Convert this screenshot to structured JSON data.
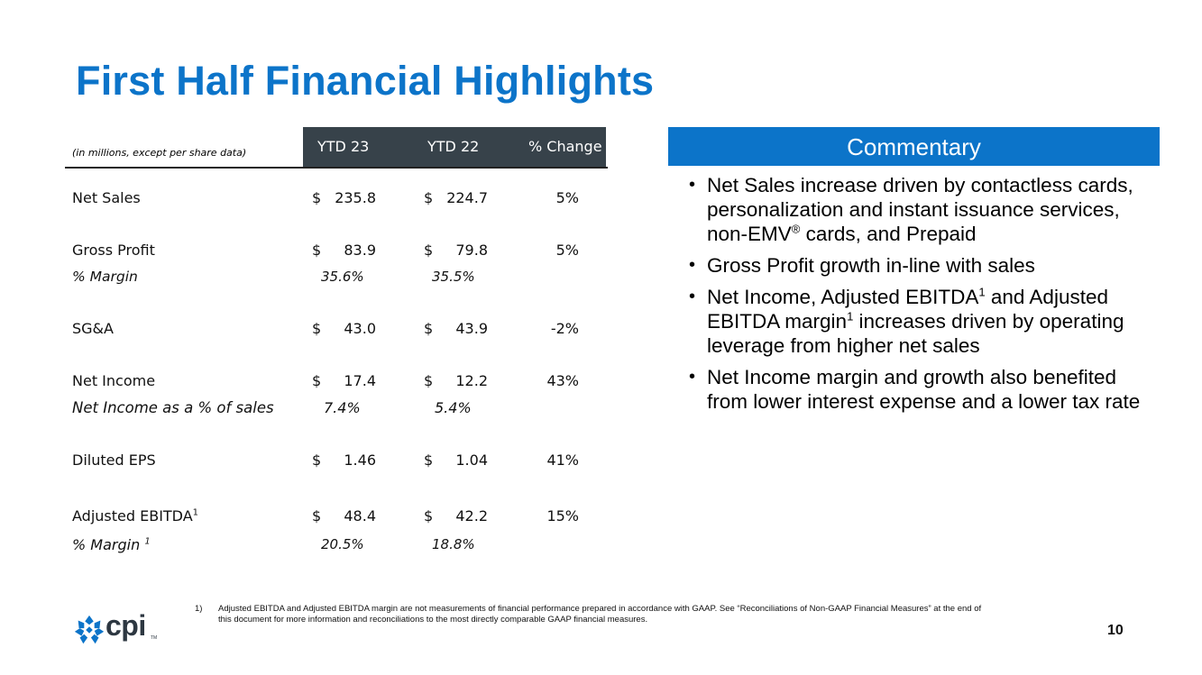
{
  "title": "First Half Financial Highlights",
  "table": {
    "units_note": "(in millions, except per share data)",
    "columns": [
      "YTD 23",
      "YTD 22",
      "% Change"
    ],
    "rows": {
      "net_sales": {
        "label": "Net Sales",
        "cur1": "$",
        "ytd23": "235.8",
        "cur2": "$",
        "ytd22": "224.7",
        "change": "5%"
      },
      "gross_profit": {
        "label": "Gross Profit",
        "cur1": "$",
        "ytd23": "83.9",
        "cur2": "$",
        "ytd22": "79.8",
        "change": "5%"
      },
      "gross_margin": {
        "label": "% Margin",
        "ytd23": "35.6%",
        "ytd22": "35.5%"
      },
      "sga": {
        "label": "SG&A",
        "cur1": "$",
        "ytd23": "43.0",
        "cur2": "$",
        "ytd22": "43.9",
        "change": "-2%"
      },
      "net_income": {
        "label": "Net Income",
        "cur1": "$",
        "ytd23": "17.4",
        "cur2": "$",
        "ytd22": "12.2",
        "change": "43%"
      },
      "net_income_pct": {
        "label": "Net Income as a % of sales",
        "ytd23": "7.4%",
        "ytd22": "5.4%"
      },
      "diluted_eps": {
        "label": "Diluted EPS",
        "cur1": "$",
        "ytd23": "1.46",
        "cur2": "$",
        "ytd22": "1.04",
        "change": "41%"
      },
      "adj_ebitda": {
        "label": "Adjusted EBITDA",
        "sup": "1",
        "cur1": "$",
        "ytd23": "48.4",
        "cur2": "$",
        "ytd22": "42.2",
        "change": "15%"
      },
      "adj_ebitda_margin": {
        "label": "% Margin",
        "sup": "1",
        "ytd23": "20.5%",
        "ytd22": "18.8%"
      }
    }
  },
  "commentary": {
    "heading": "Commentary",
    "bullet_glyph": "•",
    "items": {
      "b1": {
        "text": "Net Sales increase driven by contactless cards, personalization and instant issuance services, non-EMV",
        "reg": "®",
        "text_after": " cards, and Prepaid"
      },
      "b2": {
        "text": "Gross Profit growth in-line with sales"
      },
      "b3": {
        "part1": "Net Income, Adjusted EBITDA",
        "sup1": "1",
        "part2": " and Adjusted EBITDA margin",
        "sup2": "1",
        "part3": " increases driven by operating leverage from higher net sales"
      },
      "b4": {
        "text": "Net Income margin and growth also benefited from lower interest expense and a lower tax rate"
      }
    }
  },
  "footnote": {
    "number": "1)",
    "text": "Adjusted EBITDA and Adjusted EBITDA margin are not measurements of financial performance prepared in accordance with GAAP. See “Reconciliations of Non-GAAP Financial Measures” at the end of this document for more information and reconciliations to the most directly comparable GAAP financial measures."
  },
  "page_number": "10",
  "logo": {
    "text": "cpi",
    "tm": "TM",
    "icon": "cpi-flower-icon",
    "color_primary": "#0c74c9",
    "color_text": "#2d3741"
  },
  "colors": {
    "title": "#0c74c9",
    "table_header_bg": "#37424a",
    "commentary_header_bg": "#0c74c9"
  }
}
